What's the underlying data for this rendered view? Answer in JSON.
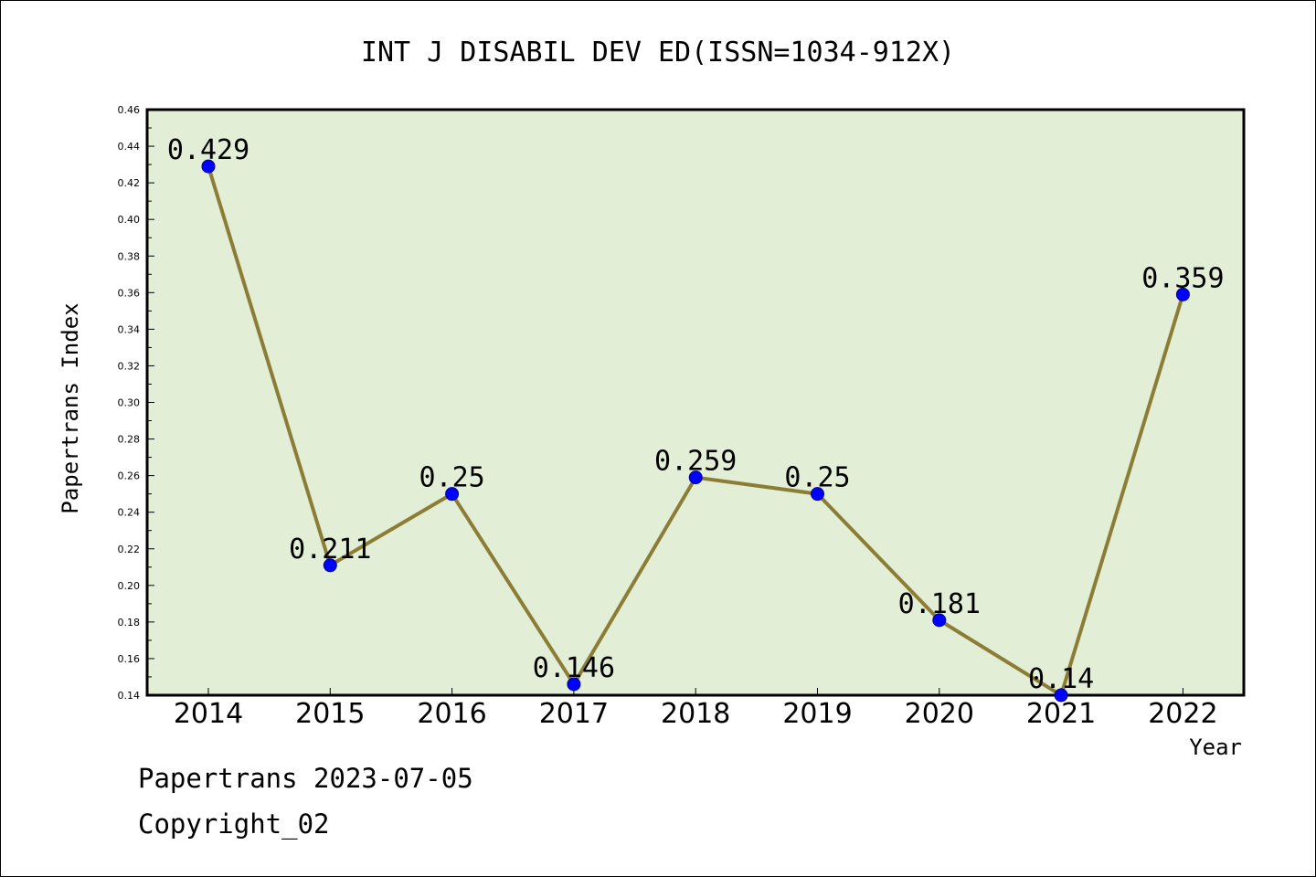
{
  "colors": {
    "plot_background": "#e2efd6",
    "line": "#8b7d35",
    "marker": "#0000ff",
    "marker_edge": "#00008b",
    "axis": "#000000"
  },
  "footer": {
    "source_date": "Papertrans 2023-07-05",
    "copyright": "Copyright_02"
  },
  "chart_data": {
    "type": "line",
    "title": "INT J DISABIL DEV ED(ISSN=1034-912X)",
    "xlabel": "Year",
    "ylabel": "Papertrans Index",
    "categories": [
      "2014",
      "2015",
      "2016",
      "2017",
      "2018",
      "2019",
      "2020",
      "2021",
      "2022"
    ],
    "values": [
      0.429,
      0.211,
      0.25,
      0.146,
      0.259,
      0.25,
      0.181,
      0.14,
      0.359
    ],
    "value_labels": [
      "0.429",
      "0.211",
      "0.25",
      "0.146",
      "0.259",
      "0.25",
      "0.181",
      "0.14",
      "0.359"
    ],
    "ylim": [
      0.14,
      0.46
    ],
    "yticks": [
      "0.14",
      "0.16",
      "0.18",
      "0.20",
      "0.22",
      "0.24",
      "0.26",
      "0.28",
      "0.30",
      "0.32",
      "0.34",
      "0.36",
      "0.38",
      "0.40",
      "0.42",
      "0.44",
      "0.46"
    ],
    "grid": false,
    "legend": "none"
  }
}
